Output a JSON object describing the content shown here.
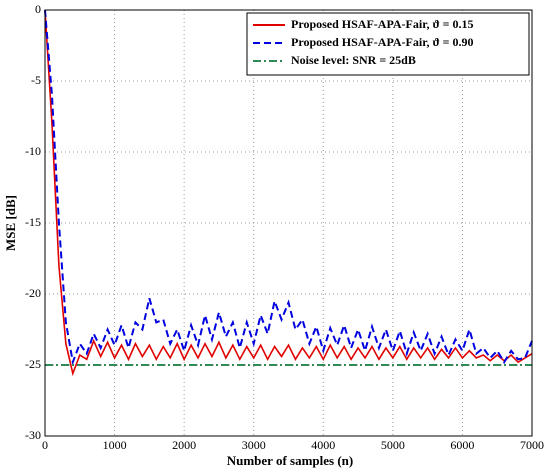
{
  "chart_data": {
    "type": "line",
    "xlabel": "Number of samples (n)",
    "ylabel": "MSE [dB]",
    "x": [
      0,
      100,
      200,
      300,
      400,
      500,
      600,
      700,
      800,
      900,
      1000,
      1100,
      1200,
      1300,
      1400,
      1500,
      1600,
      1700,
      1800,
      1900,
      2000,
      2100,
      2200,
      2300,
      2400,
      2500,
      2600,
      2700,
      2800,
      2900,
      3000,
      3100,
      3200,
      3300,
      3400,
      3500,
      3600,
      3700,
      3800,
      3900,
      4000,
      4100,
      4200,
      4300,
      4400,
      4500,
      4600,
      4700,
      4800,
      4900,
      5000,
      5100,
      5200,
      5300,
      5400,
      5500,
      5600,
      5700,
      5800,
      5900,
      6000,
      6100,
      6200,
      6300,
      6400,
      6500,
      6600,
      6700,
      6800,
      6900,
      7000
    ],
    "series": [
      {
        "name": "Proposed HSAF-APA-Fair, ϑ = 0.15",
        "color": "#e00000",
        "linestyle": "solid",
        "values": [
          0,
          -8,
          -18,
          -23.5,
          -25.6,
          -24.3,
          -24.6,
          -23.3,
          -24.4,
          -23.4,
          -24.5,
          -23.6,
          -24.6,
          -23.5,
          -24.4,
          -23.6,
          -24.6,
          -23.7,
          -24.5,
          -23.5,
          -24.6,
          -23.6,
          -24.5,
          -23.5,
          -24.4,
          -23.4,
          -24.5,
          -23.6,
          -24.6,
          -23.7,
          -24.5,
          -23.6,
          -24.6,
          -23.7,
          -24.4,
          -23.6,
          -24.6,
          -23.8,
          -24.5,
          -23.7,
          -24.6,
          -23.6,
          -24.5,
          -23.7,
          -24.6,
          -23.8,
          -24.5,
          -23.7,
          -24.6,
          -23.8,
          -24.5,
          -23.7,
          -24.6,
          -23.8,
          -24.5,
          -23.8,
          -24.6,
          -23.9,
          -24.5,
          -23.8,
          -24.5,
          -24.0,
          -24.5,
          -24.3,
          -24.7,
          -24.3,
          -24.7,
          -24.3,
          -24.8,
          -24.5,
          -24.2
        ]
      },
      {
        "name": "Proposed HSAF-APA-Fair, ϑ = 0.90",
        "color": "#0000e0",
        "linestyle": "dashed",
        "values": [
          0,
          -6,
          -15,
          -22,
          -24.8,
          -23.5,
          -24.2,
          -22.8,
          -23.8,
          -22.5,
          -23.6,
          -22.2,
          -23.8,
          -22.0,
          -22.5,
          -20.3,
          -22.0,
          -21.8,
          -23.5,
          -22.5,
          -24.0,
          -22.2,
          -23.6,
          -21.5,
          -23.2,
          -21.3,
          -23.0,
          -22.0,
          -23.8,
          -22.0,
          -23.5,
          -21.5,
          -22.8,
          -20.5,
          -21.8,
          -20.6,
          -22.5,
          -21.8,
          -23.5,
          -22.3,
          -24.0,
          -22.4,
          -23.6,
          -22.2,
          -23.8,
          -22.5,
          -24.0,
          -22.3,
          -23.8,
          -22.5,
          -24.0,
          -22.6,
          -24.2,
          -22.7,
          -24.0,
          -22.8,
          -24.2,
          -23.0,
          -24.3,
          -23.2,
          -24.0,
          -22.5,
          -24.2,
          -23.8,
          -24.5,
          -24.0,
          -24.8,
          -24.0,
          -24.6,
          -24.5,
          -23.3
        ]
      },
      {
        "name": "Noise level: SNR = 25dB",
        "color": "#2e8b57",
        "linestyle": "dashdot",
        "values": [
          -25,
          -25,
          -25,
          -25,
          -25,
          -25,
          -25,
          -25,
          -25,
          -25,
          -25,
          -25,
          -25,
          -25,
          -25,
          -25,
          -25,
          -25,
          -25,
          -25,
          -25,
          -25,
          -25,
          -25,
          -25,
          -25,
          -25,
          -25,
          -25,
          -25,
          -25,
          -25,
          -25,
          -25,
          -25,
          -25,
          -25,
          -25,
          -25,
          -25,
          -25,
          -25,
          -25,
          -25,
          -25,
          -25,
          -25,
          -25,
          -25,
          -25,
          -25,
          -25,
          -25,
          -25,
          -25,
          -25,
          -25,
          -25,
          -25,
          -25,
          -25,
          -25,
          -25,
          -25,
          -25,
          -25,
          -25,
          -25,
          -25,
          -25,
          -25
        ]
      }
    ],
    "xlim": [
      0,
      7000
    ],
    "xticks": [
      0,
      1000,
      2000,
      3000,
      4000,
      5000,
      6000,
      7000
    ],
    "ylim": [
      -30,
      0
    ],
    "yticks": [
      0,
      -5,
      -10,
      -15,
      -20,
      -25,
      -30
    ],
    "grid": true,
    "legend": "upper right"
  }
}
